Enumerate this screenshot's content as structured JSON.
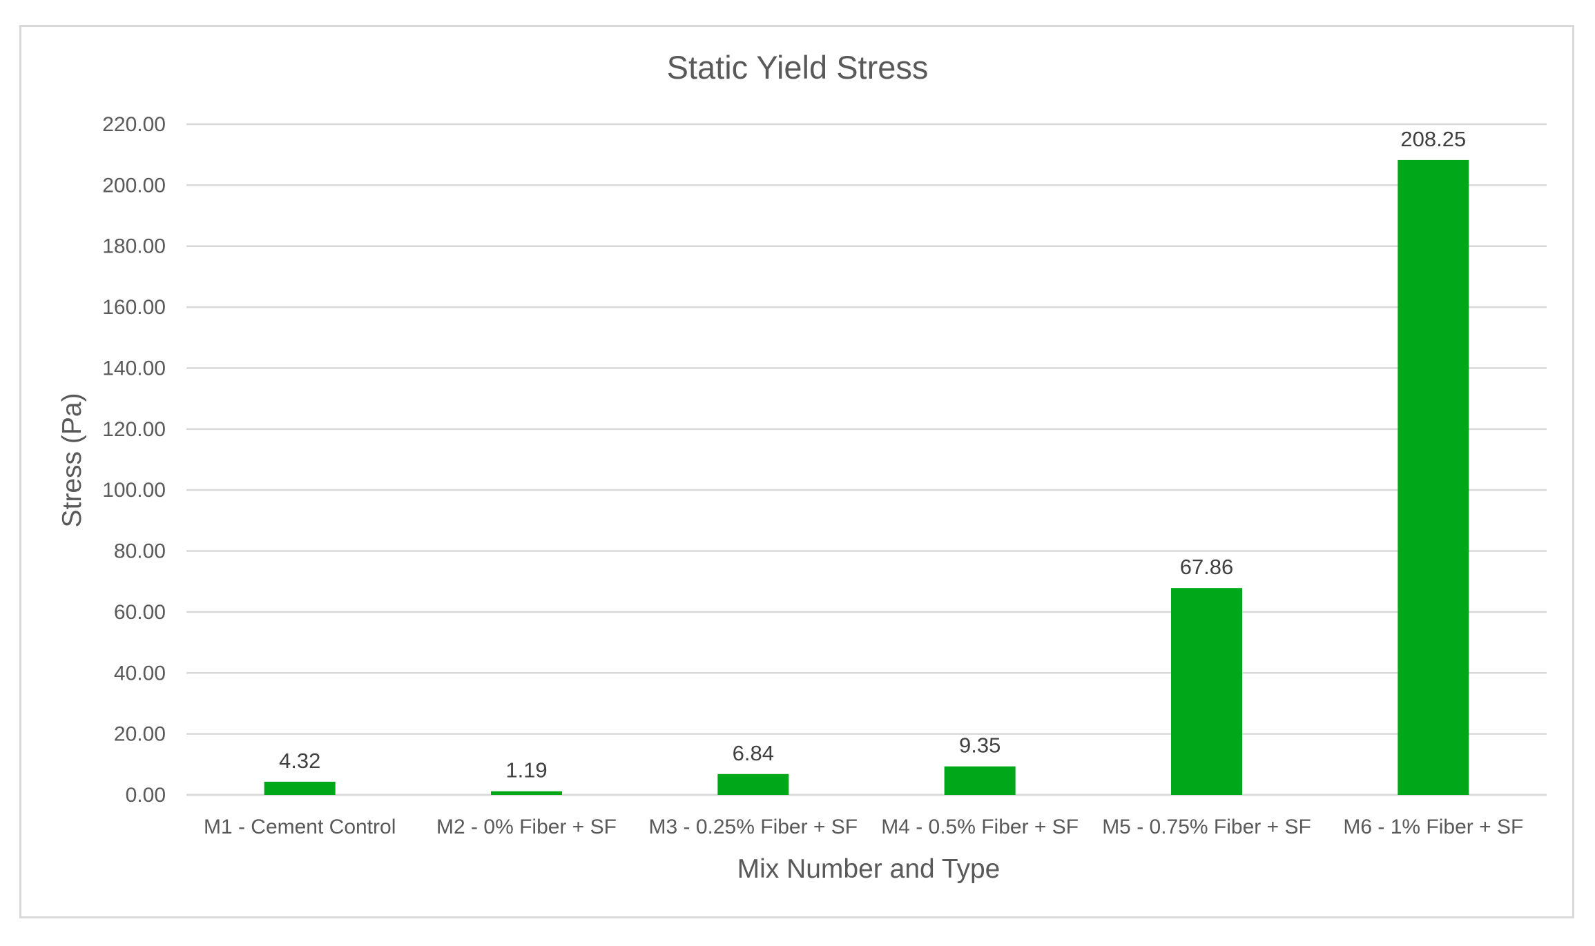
{
  "chart_data": {
    "type": "bar",
    "title": "Static Yield Stress",
    "xlabel": "Mix Number and Type",
    "ylabel": "Stress (Pa)",
    "categories": [
      "M1 - Cement Control",
      "M2 - 0% Fiber + SF",
      "M3 - 0.25% Fiber + SF",
      "M4 - 0.5% Fiber + SF",
      "M5 - 0.75% Fiber + SF",
      "M6 - 1% Fiber + SF"
    ],
    "values": [
      4.32,
      1.19,
      6.84,
      9.35,
      67.86,
      208.25
    ],
    "data_labels": [
      "4.32",
      "1.19",
      "6.84",
      "9.35",
      "67.86",
      "208.25"
    ],
    "ylim": [
      0,
      220
    ],
    "yticks": [
      0,
      20,
      40,
      60,
      80,
      100,
      120,
      140,
      160,
      180,
      200,
      220
    ],
    "ytick_labels": [
      "0.00",
      "20.00",
      "40.00",
      "60.00",
      "80.00",
      "100.00",
      "120.00",
      "140.00",
      "160.00",
      "180.00",
      "200.00",
      "220.00"
    ],
    "grid": true,
    "legend": "none",
    "bar_color": "#00a819"
  }
}
